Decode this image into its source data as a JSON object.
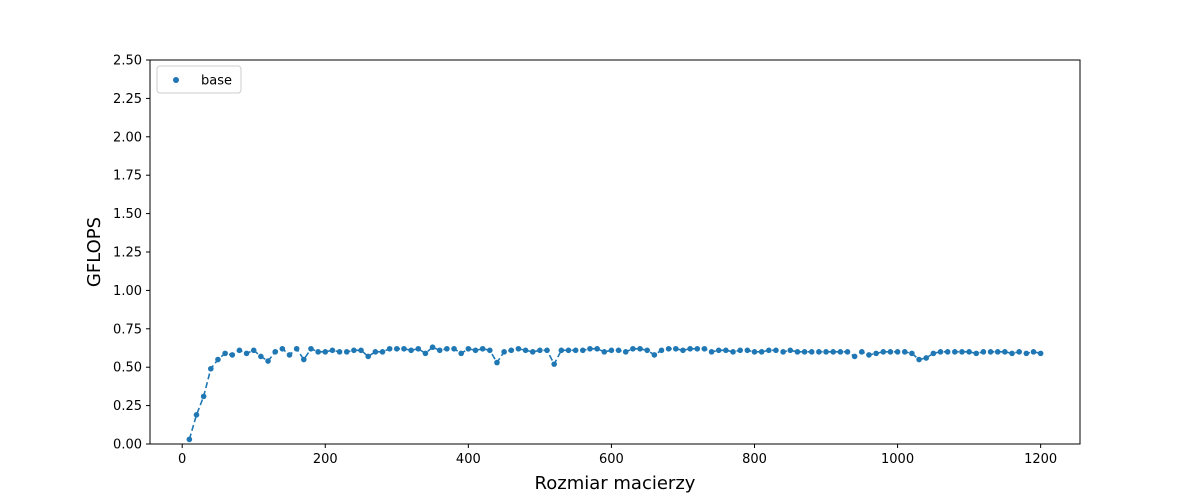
{
  "chart_data": {
    "type": "scatter",
    "xlabel": "Rozmiar macierzy",
    "ylabel": "GFLOPS",
    "xlim": [
      -45,
      1255
    ],
    "ylim": [
      0,
      2.5
    ],
    "xticks": [
      "0",
      "200",
      "400",
      "600",
      "800",
      "1000",
      "1200"
    ],
    "yticks": [
      "0.00",
      "0.25",
      "0.50",
      "0.75",
      "1.00",
      "1.25",
      "1.50",
      "1.75",
      "2.00",
      "2.25",
      "2.50"
    ],
    "grid": false,
    "legend_position": "top-left",
    "line_style": "dashed",
    "series": [
      {
        "name": "base",
        "color": "#1f77b4",
        "x": [
          10,
          20,
          30,
          40,
          50,
          60,
          70,
          80,
          90,
          100,
          110,
          120,
          130,
          140,
          150,
          160,
          170,
          180,
          190,
          200,
          210,
          220,
          230,
          240,
          250,
          260,
          270,
          280,
          290,
          300,
          310,
          320,
          330,
          340,
          350,
          360,
          370,
          380,
          390,
          400,
          410,
          420,
          430,
          440,
          450,
          460,
          470,
          480,
          490,
          500,
          510,
          520,
          530,
          540,
          550,
          560,
          570,
          580,
          590,
          600,
          610,
          620,
          630,
          640,
          650,
          660,
          670,
          680,
          690,
          700,
          710,
          720,
          730,
          740,
          750,
          760,
          770,
          780,
          790,
          800,
          810,
          820,
          830,
          840,
          850,
          860,
          870,
          880,
          890,
          900,
          910,
          920,
          930,
          940,
          950,
          960,
          970,
          980,
          990,
          1000,
          1010,
          1020,
          1030,
          1040,
          1050,
          1060,
          1070,
          1080,
          1090,
          1100,
          1110,
          1120,
          1130,
          1140,
          1150,
          1160,
          1170,
          1180,
          1190,
          1200
        ],
        "y": [
          0.03,
          0.19,
          0.31,
          0.49,
          0.55,
          0.59,
          0.58,
          0.61,
          0.59,
          0.61,
          0.57,
          0.54,
          0.6,
          0.62,
          0.58,
          0.62,
          0.55,
          0.62,
          0.6,
          0.6,
          0.61,
          0.6,
          0.6,
          0.61,
          0.61,
          0.57,
          0.6,
          0.6,
          0.62,
          0.62,
          0.62,
          0.61,
          0.62,
          0.59,
          0.63,
          0.61,
          0.62,
          0.62,
          0.59,
          0.62,
          0.61,
          0.62,
          0.61,
          0.53,
          0.6,
          0.61,
          0.62,
          0.61,
          0.6,
          0.61,
          0.61,
          0.52,
          0.61,
          0.61,
          0.61,
          0.61,
          0.62,
          0.62,
          0.6,
          0.61,
          0.61,
          0.6,
          0.62,
          0.62,
          0.61,
          0.58,
          0.61,
          0.62,
          0.62,
          0.61,
          0.62,
          0.62,
          0.62,
          0.6,
          0.61,
          0.61,
          0.6,
          0.61,
          0.61,
          0.6,
          0.6,
          0.61,
          0.61,
          0.6,
          0.61,
          0.6,
          0.6,
          0.6,
          0.6,
          0.6,
          0.6,
          0.6,
          0.6,
          0.57,
          0.6,
          0.58,
          0.59,
          0.6,
          0.6,
          0.6,
          0.6,
          0.59,
          0.55,
          0.56,
          0.59,
          0.6,
          0.6,
          0.6,
          0.6,
          0.6,
          0.59,
          0.6,
          0.6,
          0.6,
          0.6,
          0.59,
          0.6,
          0.59,
          0.6,
          0.59
        ]
      }
    ]
  }
}
